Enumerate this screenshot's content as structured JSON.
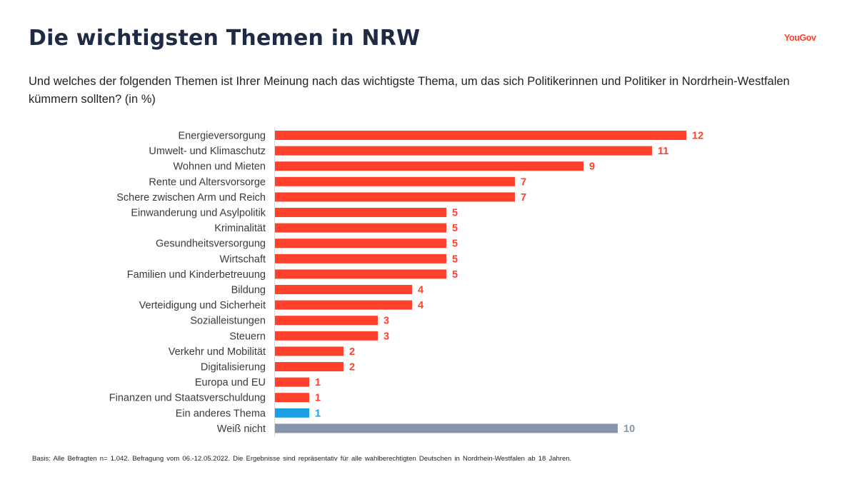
{
  "title": "Die wichtigsten Themen in NRW",
  "logo": {
    "text": "YouGov",
    "color": "#ff412c"
  },
  "subtitle": "Und welches der folgenden Themen ist Ihrer Meinung nach das wichtigste Thema, um das sich Politikerinnen und Politiker in Nordrhein-Westfalen kümmern sollten? (in %)",
  "footnote": "Basis: Alle Befragten n= 1.042. Befragung vom 06.-12.05.2022. Die Ergebnisse sind repräsentativ für alle wahlberechtigten Deutschen in Nordrhein-Westfalen ab 18 Jahren.",
  "chart_data": {
    "type": "bar",
    "orientation": "horizontal",
    "title": "",
    "xlabel": "",
    "ylabel": "",
    "grid": false,
    "xlim": [
      0,
      12
    ],
    "categories": [
      "Energieversorgung",
      "Umwelt- und Klimaschutz",
      "Wohnen und Mieten",
      "Rente und Altersvorsorge",
      "Schere zwischen Arm und Reich",
      "Einwanderung und Asylpolitik",
      "Kriminalität",
      "Gesundheitsversorgung",
      "Wirtschaft",
      "Familien und Kinderbetreuung",
      "Bildung",
      "Verteidigung und Sicherheit",
      "Sozialleistungen",
      "Steuern",
      "Verkehr und Mobilität",
      "Digitalisierung",
      "Europa und EU",
      "Finanzen und Staatsverschuldung",
      "Ein anderes Thema",
      "Weiß nicht"
    ],
    "values": [
      12,
      11,
      9,
      7,
      7,
      5,
      5,
      5,
      5,
      5,
      4,
      4,
      3,
      3,
      2,
      2,
      1,
      1,
      1,
      10
    ],
    "colors": {
      "topic": "#ff412c",
      "other": "#1aa0e0",
      "dont_know": "#8795ab"
    },
    "bar_color_keys": [
      "topic",
      "topic",
      "topic",
      "topic",
      "topic",
      "topic",
      "topic",
      "topic",
      "topic",
      "topic",
      "topic",
      "topic",
      "topic",
      "topic",
      "topic",
      "topic",
      "topic",
      "topic",
      "other",
      "dont_know"
    ]
  }
}
